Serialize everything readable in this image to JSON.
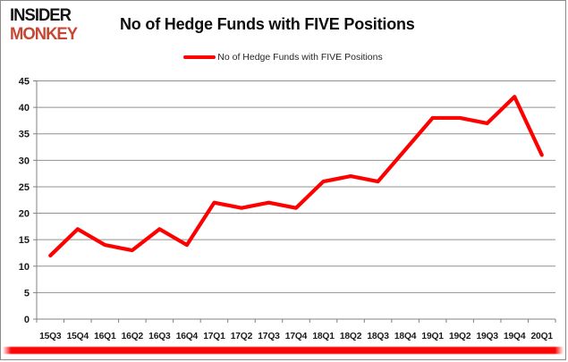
{
  "brand": {
    "line1": "INSIDER",
    "line2": "MONKEY",
    "color_top": "#141414",
    "color_bottom": "#c64733"
  },
  "header": {
    "title": "No of Hedge Funds with FIVE Positions"
  },
  "legend": {
    "label": "No of Hedge Funds with FIVE Positions",
    "swatch_color": "#fe0000"
  },
  "chart_data": {
    "type": "line",
    "title": "No of Hedge Funds with FIVE Positions",
    "categories": [
      "15Q3",
      "15Q4",
      "16Q1",
      "16Q2",
      "16Q3",
      "16Q4",
      "17Q1",
      "17Q2",
      "17Q3",
      "17Q4",
      "18Q1",
      "18Q2",
      "18Q3",
      "18Q4",
      "19Q1",
      "19Q2",
      "19Q3",
      "19Q4",
      "20Q1"
    ],
    "series": [
      {
        "name": "No of Hedge Funds with FIVE Positions",
        "values": [
          12,
          17,
          14,
          13,
          17,
          14,
          22,
          21,
          22,
          21,
          26,
          27,
          26,
          32,
          38,
          38,
          37,
          42,
          31
        ]
      }
    ],
    "xlabel": "",
    "ylabel": "",
    "ylim": [
      0,
      45
    ],
    "ytick_interval": 5,
    "grid": true,
    "legend_position": "top",
    "line_color": "#fe0000",
    "line_width": 4.2,
    "grid_color": "#909090",
    "axis_color": "#808080",
    "tick_label_color": "#1a1a1a",
    "bottom_bar_color": "#fb0606"
  }
}
